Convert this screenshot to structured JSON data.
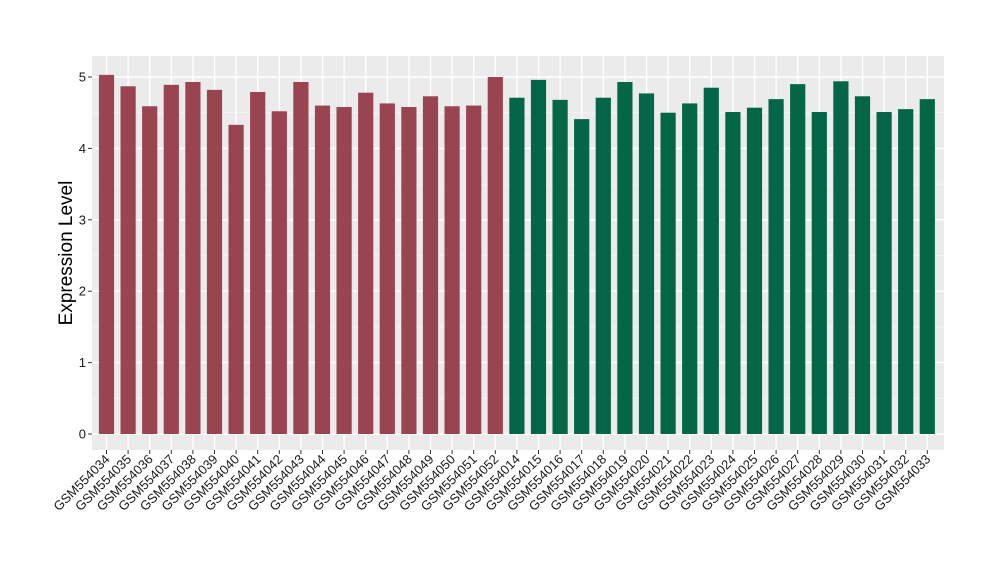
{
  "chart_data": {
    "type": "bar",
    "title": "",
    "xlabel": "",
    "ylabel": "Expression Level",
    "ylim": [
      0,
      5.2
    ],
    "yticks": [
      0,
      1,
      2,
      3,
      4,
      5
    ],
    "grid": true,
    "legend": "none",
    "panel_color": "#ebebeb",
    "categories": [
      "GSM554034",
      "GSM554035",
      "GSM554036",
      "GSM554037",
      "GSM554038",
      "GSM554039",
      "GSM554040",
      "GSM554041",
      "GSM554042",
      "GSM554043",
      "GSM554044",
      "GSM554045",
      "GSM554046",
      "GSM554047",
      "GSM554048",
      "GSM554049",
      "GSM554050",
      "GSM554051",
      "GSM554052",
      "GSM554014",
      "GSM554015",
      "GSM554016",
      "GSM554017",
      "GSM554018",
      "GSM554019",
      "GSM554020",
      "GSM554021",
      "GSM554022",
      "GSM554023",
      "GSM554024",
      "GSM554025",
      "GSM554026",
      "GSM554027",
      "GSM554028",
      "GSM554029",
      "GSM554030",
      "GSM554031",
      "GSM554032",
      "GSM554033"
    ],
    "values": [
      5.03,
      4.87,
      4.59,
      4.89,
      4.93,
      4.82,
      4.33,
      4.79,
      4.52,
      4.93,
      4.6,
      4.58,
      4.78,
      4.63,
      4.58,
      4.73,
      4.59,
      4.6,
      5.0,
      4.71,
      4.96,
      4.68,
      4.41,
      4.71,
      4.93,
      4.77,
      4.5,
      4.63,
      4.85,
      4.51,
      4.57,
      4.69,
      4.9,
      4.51,
      4.94,
      4.73,
      4.51,
      4.55,
      4.69
    ],
    "colors": [
      "#9b4451",
      "#9b4451",
      "#9b4451",
      "#9b4451",
      "#9b4451",
      "#9b4451",
      "#9b4451",
      "#9b4451",
      "#9b4451",
      "#9b4451",
      "#9b4451",
      "#9b4451",
      "#9b4451",
      "#9b4451",
      "#9b4451",
      "#9b4451",
      "#9b4451",
      "#9b4451",
      "#9b4451",
      "#036646",
      "#036646",
      "#036646",
      "#036646",
      "#036646",
      "#036646",
      "#036646",
      "#036646",
      "#036646",
      "#036646",
      "#036646",
      "#036646",
      "#036646",
      "#036646",
      "#036646",
      "#036646",
      "#036646",
      "#036646",
      "#036646",
      "#036646"
    ]
  }
}
